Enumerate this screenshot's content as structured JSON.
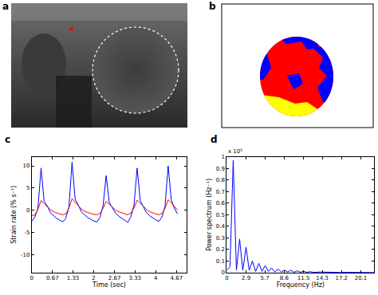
{
  "panel_labels": [
    "a",
    "b"
  ],
  "chart_data": [
    {
      "panel": "c",
      "type": "line",
      "x_label": "Time (sec)",
      "y_label": "Strain rate (% s⁻¹)",
      "x": [
        0,
        0.1,
        0.2,
        0.3,
        0.4,
        0.5,
        0.6,
        0.7,
        0.8,
        0.9,
        1.0,
        1.1,
        1.2,
        1.3,
        1.4,
        1.5,
        1.6,
        1.7,
        1.8,
        1.9,
        2.0,
        2.1,
        2.2,
        2.3,
        2.4,
        2.5,
        2.6,
        2.7,
        2.8,
        2.9,
        3.0,
        3.1,
        3.2,
        3.3,
        3.4,
        3.5,
        3.6,
        3.7,
        3.8,
        3.9,
        4.0,
        4.1,
        4.2,
        4.3,
        4.4,
        4.5,
        4.6,
        4.7
      ],
      "series": [
        {
          "color": "#0000ff",
          "values": [
            -2.5,
            -1.5,
            0.5,
            9.5,
            2.0,
            1.0,
            -0.5,
            -1.2,
            -1.8,
            -2.2,
            -2.6,
            -1.8,
            0.8,
            10.8,
            2.5,
            1.2,
            -0.3,
            -1.0,
            -1.6,
            -2.0,
            -2.4,
            -2.6,
            -1.6,
            1.0,
            7.8,
            1.8,
            0.6,
            -0.6,
            -1.3,
            -1.8,
            -2.2,
            -2.7,
            -1.4,
            1.2,
            9.5,
            2.2,
            0.8,
            -0.5,
            -1.2,
            -1.7,
            -2.1,
            -2.5,
            -1.5,
            0.9,
            10.0,
            2.4,
            0.5,
            -0.8
          ]
        },
        {
          "color": "#ff0000",
          "values": [
            -1.2,
            -1.0,
            0.2,
            2.2,
            1.5,
            0.8,
            0.2,
            -0.3,
            -0.6,
            -0.8,
            -1.0,
            -0.8,
            0.5,
            2.6,
            1.8,
            1.0,
            0.3,
            -0.2,
            -0.5,
            -0.7,
            -0.9,
            -1.0,
            -0.7,
            0.4,
            2.0,
            1.4,
            0.7,
            0.1,
            -0.3,
            -0.6,
            -0.8,
            -1.0,
            -0.6,
            0.5,
            2.3,
            1.6,
            0.9,
            0.2,
            -0.3,
            -0.6,
            -0.8,
            -1.0,
            -0.7,
            0.4,
            2.4,
            1.7,
            0.8,
            0.1
          ]
        }
      ],
      "xlim": [
        0,
        5
      ],
      "xticks": [
        0,
        0.67,
        1.33,
        2,
        2.67,
        3.33,
        4,
        4.67
      ],
      "ylim": [
        -14,
        12
      ],
      "yticks": [
        -10,
        -5,
        0,
        5,
        10
      ],
      "grid": false
    },
    {
      "panel": "d",
      "type": "line",
      "x_label": "Frequency (Hz)",
      "y_label": "Power spectrum (Hz⁻¹)",
      "annotations": [
        "x 10⁵"
      ],
      "x": [
        0,
        0.48,
        0.96,
        1.44,
        1.92,
        2.4,
        2.88,
        3.36,
        3.84,
        4.32,
        4.8,
        5.28,
        5.76,
        6.24,
        6.72,
        7.2,
        7.68,
        8.16,
        8.64,
        9.12,
        9.6,
        10.08,
        10.56,
        11.04,
        11.52,
        12,
        12.48,
        13,
        14,
        15,
        16,
        17,
        18,
        19,
        20,
        21,
        22.1
      ],
      "series": [
        {
          "color": "#0000ff",
          "values": [
            0.02,
            0.05,
            0.97,
            0.02,
            0.29,
            0.02,
            0.22,
            0.02,
            0.1,
            0.01,
            0.08,
            0.01,
            0.06,
            0.01,
            0.04,
            0.005,
            0.03,
            0.005,
            0.02,
            0.005,
            0.02,
            0.003,
            0.015,
            0.003,
            0.012,
            0.002,
            0.008,
            0.002,
            0.005,
            0.002,
            0.003,
            0.001,
            0.002,
            0.001,
            0.001,
            0.001,
            0
          ]
        }
      ],
      "xlim": [
        0,
        22.1
      ],
      "xticks": [
        0,
        2.9,
        5.7,
        8.6,
        11.5,
        14.3,
        17.2,
        20.1
      ],
      "ylim": [
        0,
        1
      ],
      "yticks": [
        0,
        0.1,
        0.2,
        0.3,
        0.4,
        0.5,
        0.6,
        0.7,
        0.8,
        0.9,
        1
      ],
      "grid": false
    }
  ]
}
